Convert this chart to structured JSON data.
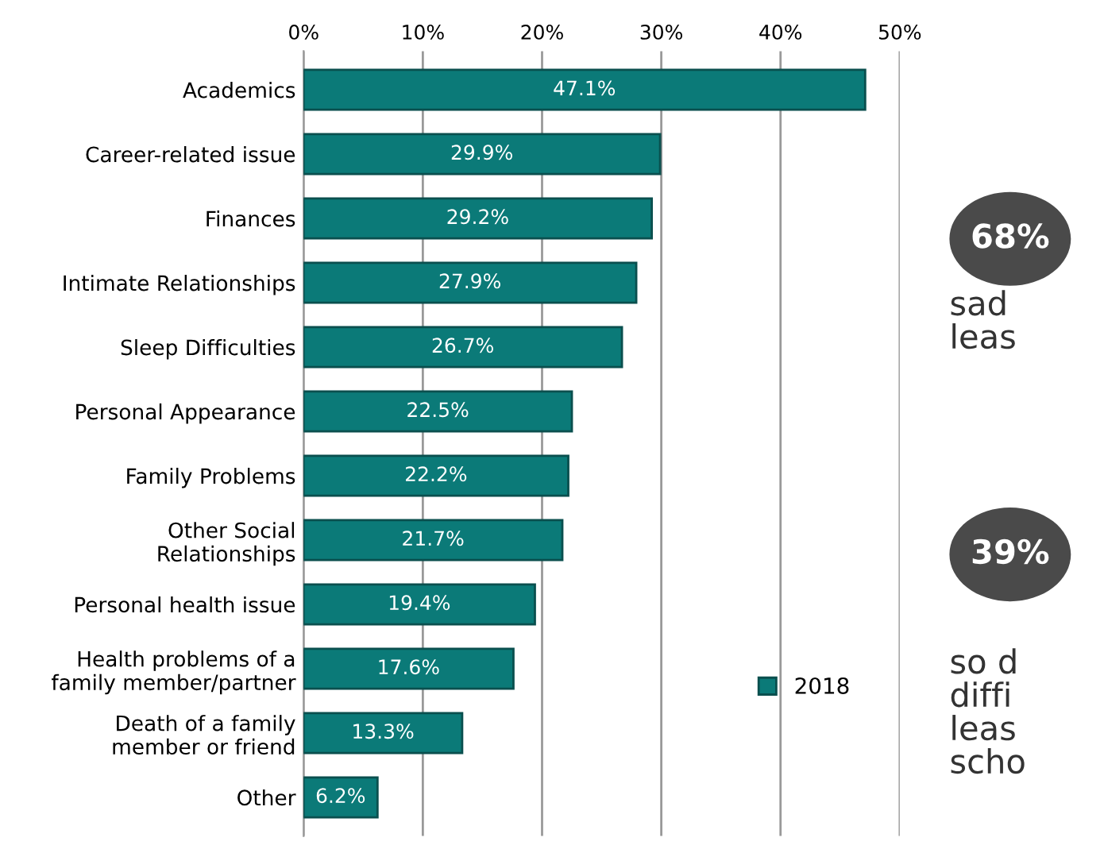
{
  "chart_data": {
    "type": "bar",
    "orientation": "horizontal",
    "categories": [
      "Academics",
      "Career-related issue",
      "Finances",
      "Intimate Relationships",
      "Sleep Difficulties",
      "Personal Appearance",
      "Family Problems",
      "Other Social\nRelationships",
      "Personal health issue",
      "Health problems of a\nfamily member/partner",
      "Death of a family\nmember or friend",
      "Other"
    ],
    "series": [
      {
        "name": "2018",
        "color": "#0b7a78",
        "values": [
          47.1,
          29.9,
          29.2,
          27.9,
          26.7,
          22.5,
          22.2,
          21.7,
          19.4,
          17.6,
          13.3,
          6.2
        ],
        "value_labels": [
          "47.1%",
          "29.9%",
          "29.2%",
          "27.9%",
          "26.7%",
          "22.5%",
          "22.2%",
          "21.7%",
          "19.4%",
          "17.6%",
          "13.3%",
          "6.2%"
        ]
      }
    ],
    "xlim": [
      0,
      50
    ],
    "xticks": [
      {
        "value": 0,
        "label": "0%"
      },
      {
        "value": 10,
        "label": "10%"
      },
      {
        "value": 20,
        "label": "20%"
      },
      {
        "value": 30,
        "label": "30%"
      },
      {
        "value": 40,
        "label": "40%"
      },
      {
        "value": 50,
        "label": "50%"
      }
    ],
    "grid": "x",
    "legend": "lower right",
    "annotations": [
      "68%",
      "sad\nleas",
      "39%",
      "so d\ndiffi\nleas\nscho"
    ]
  }
}
